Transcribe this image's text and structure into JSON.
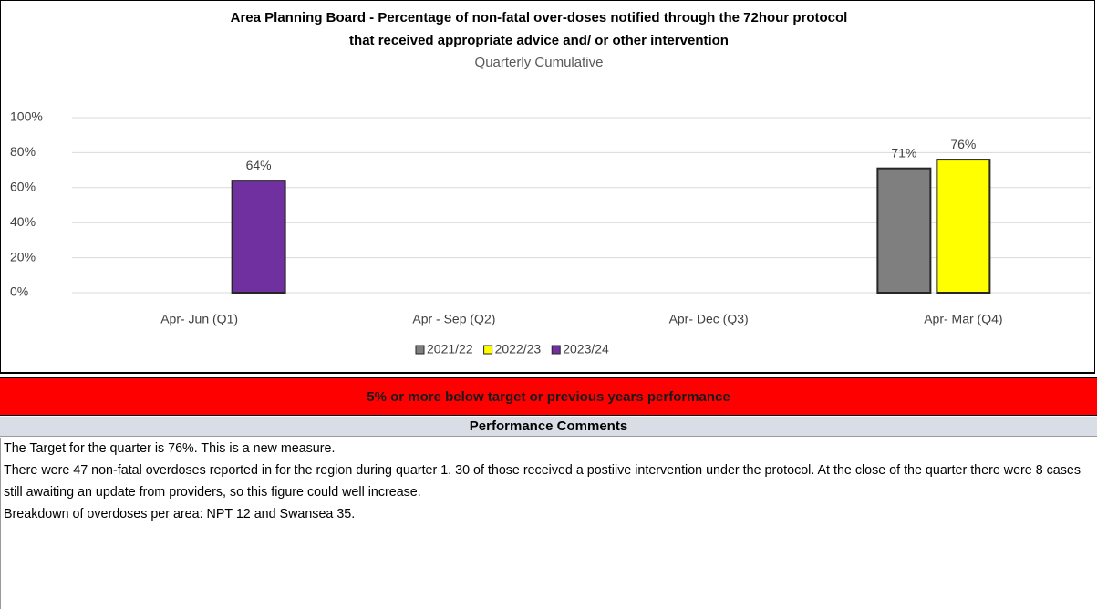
{
  "chart_data": {
    "type": "bar",
    "title": [
      "Area Planning Board - Percentage of non-fatal over-doses notified through the 72hour protocol",
      "that received appropriate advice and/ or other intervention"
    ],
    "subtitle": "Quarterly Cumulative",
    "categories": [
      "Apr- Jun  (Q1)",
      "Apr - Sep  (Q2)",
      "Apr- Dec  (Q3)",
      "Apr- Mar  (Q4)"
    ],
    "series": [
      {
        "name": "2021/22",
        "color": "#7f7f7f",
        "values": [
          null,
          null,
          null,
          71
        ],
        "value_labels": [
          null,
          null,
          null,
          "71%"
        ]
      },
      {
        "name": "2022/23",
        "color": "#ffff00",
        "values": [
          null,
          null,
          null,
          76
        ],
        "value_labels": [
          null,
          null,
          null,
          "76%"
        ]
      },
      {
        "name": "2023/24",
        "color": "#7030a0",
        "values": [
          64,
          null,
          null,
          null
        ],
        "value_labels": [
          "64%",
          null,
          null,
          null
        ]
      }
    ],
    "ylim": [
      0,
      100
    ],
    "yticks": [
      {
        "value": 0,
        "label": "0%"
      },
      {
        "value": 20,
        "label": "20%"
      },
      {
        "value": 40,
        "label": "40%"
      },
      {
        "value": 60,
        "label": "60%"
      },
      {
        "value": 80,
        "label": "80%"
      },
      {
        "value": 100,
        "label": "100%"
      }
    ],
    "grid": true
  },
  "status": "5% or more below target or previous years performance",
  "comments": {
    "heading": "Performance Comments",
    "paragraphs": [
      "The Target for the quarter is 76%.  This is a new measure.",
      "There were 47 non-fatal overdoses reported in for the region during quarter 1.   30 of those received a postiive intervention under the protocol.   At the close of the quarter there were 8 cases still awaiting an update from providers, so this figure could well increase.",
      "Breakdown of overdoses per area:  NPT 12  and Swansea 35."
    ]
  }
}
